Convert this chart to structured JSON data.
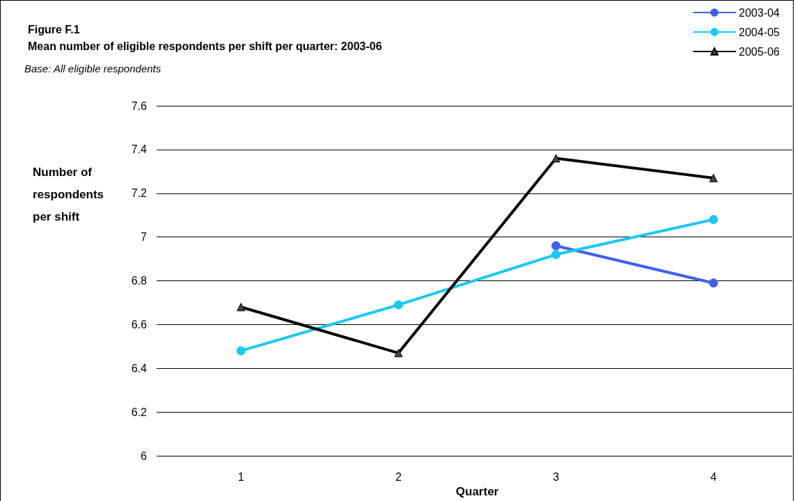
{
  "chart_data": {
    "type": "line",
    "title": "Figure F.1",
    "subtitle": "Mean number of eligible respondents per shift per quarter: 2003-06",
    "annotations": [
      "Base: All eligible respondents"
    ],
    "xlabel": "Quarter",
    "ylabel": "Number of respondents per shift",
    "categories": [
      "1",
      "2",
      "3",
      "4"
    ],
    "series": [
      {
        "name": "2003-04",
        "color": "#3f5ff0",
        "marker": "circle",
        "values": [
          null,
          null,
          6.96,
          6.79
        ]
      },
      {
        "name": "2004-05",
        "color": "#19c8f5",
        "marker": "circle",
        "values": [
          6.48,
          6.69,
          6.92,
          7.08
        ]
      },
      {
        "name": "2005-06",
        "color": "#000000",
        "marker": "triangle",
        "values": [
          6.68,
          6.47,
          7.36,
          7.27
        ]
      }
    ],
    "ylim": [
      6,
      7.6
    ],
    "yticks": [
      6,
      6.2,
      6.4,
      6.6,
      6.8,
      7,
      7.2,
      7.4,
      7.6
    ],
    "grid": "y",
    "legend": "top right",
    "line_style": "solid"
  }
}
